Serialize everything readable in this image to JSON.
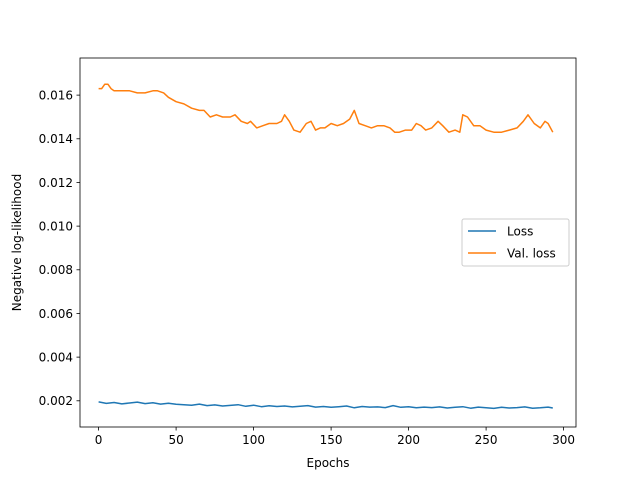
{
  "chart_data": {
    "type": "line",
    "title": "",
    "xlabel": "Epochs",
    "ylabel": "Negative log-likelihood",
    "xlim": [
      -12,
      308
    ],
    "ylim": [
      0.0008,
      0.0177
    ],
    "xticks": [
      0,
      50,
      100,
      150,
      200,
      250,
      300
    ],
    "yticks": [
      0.002,
      0.004,
      0.006,
      0.008,
      0.01,
      0.012,
      0.014,
      0.016
    ],
    "ytick_labels": [
      "0.002",
      "0.004",
      "0.006",
      "0.008",
      "0.010",
      "0.012",
      "0.014",
      "0.016"
    ],
    "grid": false,
    "legend_position": "center-right",
    "series": [
      {
        "name": "Loss",
        "color": "#1f77b4",
        "x": [
          0,
          5,
          10,
          15,
          20,
          25,
          30,
          35,
          40,
          45,
          50,
          55,
          60,
          65,
          70,
          75,
          80,
          85,
          90,
          95,
          100,
          105,
          110,
          115,
          120,
          125,
          130,
          135,
          140,
          145,
          150,
          155,
          160,
          165,
          170,
          175,
          180,
          185,
          190,
          195,
          200,
          205,
          210,
          215,
          220,
          225,
          230,
          235,
          240,
          245,
          250,
          255,
          260,
          265,
          270,
          275,
          280,
          285,
          290,
          293
        ],
        "values": [
          0.00195,
          0.00188,
          0.00192,
          0.00186,
          0.0019,
          0.00194,
          0.00187,
          0.00191,
          0.00185,
          0.00189,
          0.00184,
          0.00182,
          0.0018,
          0.00185,
          0.00178,
          0.00181,
          0.00176,
          0.00179,
          0.00182,
          0.00175,
          0.0018,
          0.00173,
          0.00177,
          0.00174,
          0.00176,
          0.00172,
          0.00175,
          0.00178,
          0.00171,
          0.00174,
          0.0017,
          0.00173,
          0.00176,
          0.00168,
          0.00174,
          0.00171,
          0.00172,
          0.00169,
          0.00178,
          0.0017,
          0.00173,
          0.00168,
          0.00171,
          0.00169,
          0.00172,
          0.00167,
          0.0017,
          0.00173,
          0.00166,
          0.00171,
          0.00168,
          0.00165,
          0.0017,
          0.00167,
          0.00169,
          0.00172,
          0.00166,
          0.00168,
          0.00171,
          0.00167
        ]
      },
      {
        "name": "Val. loss",
        "color": "#ff7f0e",
        "x": [
          0,
          2,
          4,
          6,
          8,
          10,
          15,
          20,
          25,
          30,
          35,
          38,
          42,
          45,
          50,
          55,
          60,
          65,
          68,
          72,
          76,
          80,
          85,
          88,
          92,
          96,
          98,
          102,
          106,
          110,
          115,
          118,
          120,
          123,
          126,
          130,
          134,
          137,
          140,
          143,
          146,
          150,
          154,
          158,
          162,
          165,
          168,
          172,
          176,
          180,
          184,
          188,
          191,
          194,
          198,
          202,
          205,
          208,
          211,
          215,
          219,
          222,
          226,
          230,
          233,
          235,
          238,
          242,
          246,
          250,
          255,
          260,
          265,
          270,
          274,
          277,
          281,
          285,
          288,
          290,
          293
        ],
        "values": [
          0.0163,
          0.0163,
          0.0165,
          0.0165,
          0.0163,
          0.0162,
          0.0162,
          0.0162,
          0.0161,
          0.0161,
          0.0162,
          0.0162,
          0.0161,
          0.0159,
          0.0157,
          0.0156,
          0.0154,
          0.0153,
          0.0153,
          0.015,
          0.0151,
          0.015,
          0.015,
          0.0151,
          0.0148,
          0.0147,
          0.0148,
          0.0145,
          0.0146,
          0.0147,
          0.0147,
          0.0148,
          0.0151,
          0.0148,
          0.0144,
          0.0143,
          0.0147,
          0.0148,
          0.0144,
          0.0145,
          0.0145,
          0.0147,
          0.0146,
          0.0147,
          0.0149,
          0.0153,
          0.0147,
          0.0146,
          0.0145,
          0.0146,
          0.0146,
          0.0145,
          0.0143,
          0.0143,
          0.0144,
          0.0144,
          0.0147,
          0.0146,
          0.0144,
          0.0145,
          0.0148,
          0.0146,
          0.0143,
          0.0144,
          0.0143,
          0.0151,
          0.015,
          0.0146,
          0.0146,
          0.0144,
          0.0143,
          0.0143,
          0.0144,
          0.0145,
          0.0148,
          0.0151,
          0.0147,
          0.0145,
          0.0148,
          0.0147,
          0.0143
        ]
      }
    ]
  }
}
